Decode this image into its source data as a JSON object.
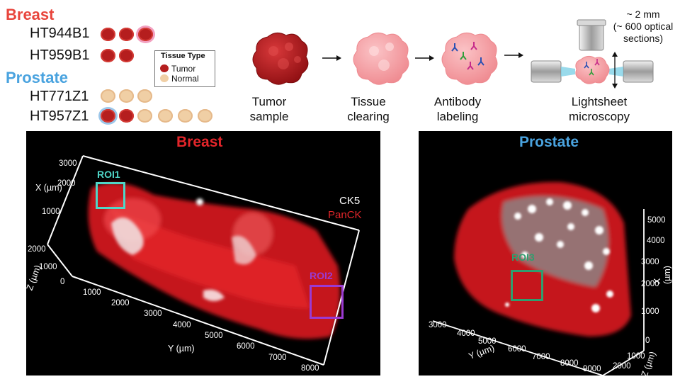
{
  "legend": {
    "breast_heading": "Breast",
    "prostate_heading": "Prostate",
    "samples": [
      "HT944B1",
      "HT959B1",
      "HT771Z1",
      "HT957Z1"
    ],
    "tissue_type_title": "Tissue Type",
    "tumor_label": "Tumor",
    "normal_label": "Normal"
  },
  "workflow": {
    "steps": [
      {
        "line1": "Tumor",
        "line2": "sample"
      },
      {
        "line1": "Tissue",
        "line2": "clearing"
      },
      {
        "line1": "Antibody",
        "line2": "labeling"
      },
      {
        "line1": "Lightsheet",
        "line2": "microscopy"
      }
    ],
    "note_line1": "~ 2 mm",
    "note_line2": "(~ 600 optical",
    "note_line3": "sections)"
  },
  "breast_panel": {
    "title": "Breast",
    "channel1": "CK5",
    "channel2": "PanCK",
    "roi1": "ROI1",
    "roi2": "ROI2",
    "x_axis_label": "X (µm)",
    "z_axis_label": "Z (µm)",
    "y_axis_label": "Y (µm)",
    "x_ticks": [
      "3000",
      "2000",
      "1000"
    ],
    "z_ticks": [
      "2000",
      "1000",
      "0"
    ],
    "y_ticks": [
      "1000",
      "2000",
      "3000",
      "4000",
      "5000",
      "6000",
      "7000",
      "8000"
    ]
  },
  "prostate_panel": {
    "title": "Prostate",
    "roi3": "ROI3",
    "y_axis_label": "Y (µm)",
    "z_axis_label": "Z (µm)",
    "x_axis_label": "X (µm)",
    "y_ticks": [
      "3000",
      "4000",
      "5000",
      "6000",
      "7000",
      "8000",
      "9000"
    ],
    "z_ticks": [
      "1000",
      "2000"
    ],
    "x_ticks": [
      "5000",
      "4000",
      "3000",
      "2000",
      "1000",
      "0"
    ]
  },
  "colors": {
    "breast_heading": "#e8453c",
    "prostate_heading": "#4aa3df",
    "tumor": "#b51e1e",
    "normal": "#f0cfa5",
    "roi1": "#4fd6c8",
    "roi2": "#9a3ad2",
    "roi3": "#2f9e6e",
    "panck": "#e3252a"
  }
}
